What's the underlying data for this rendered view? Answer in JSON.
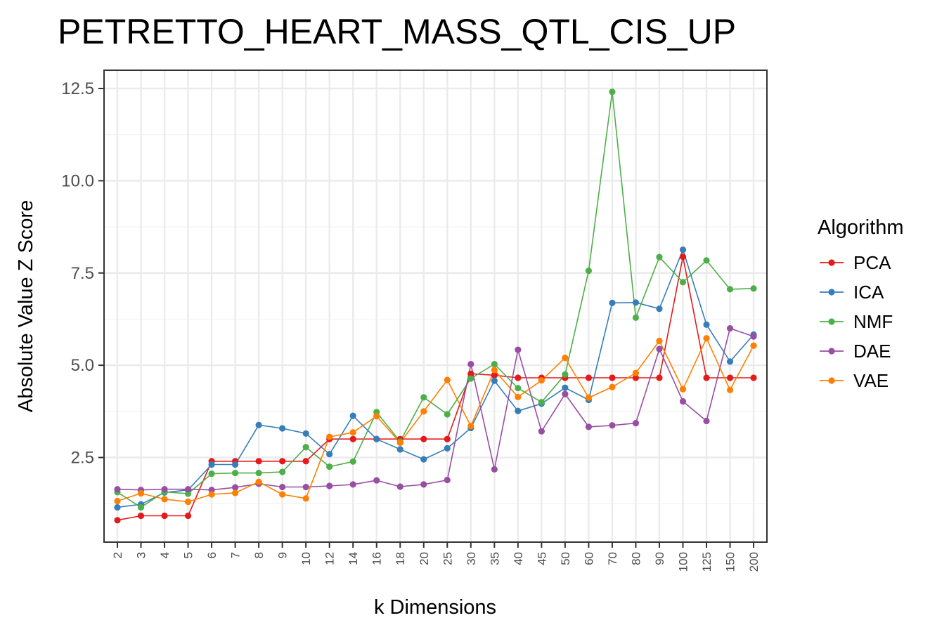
{
  "chart_data": {
    "type": "line",
    "title": "PETRETTO_HEART_MASS_QTL_CIS_UP",
    "xlabel": "k Dimensions",
    "ylabel": "Absolute Value Z Score",
    "x_scale": "categorical",
    "categories": [
      "2",
      "3",
      "4",
      "5",
      "6",
      "7",
      "8",
      "9",
      "10",
      "12",
      "14",
      "16",
      "18",
      "20",
      "25",
      "30",
      "35",
      "40",
      "45",
      "50",
      "60",
      "70",
      "80",
      "90",
      "100",
      "125",
      "150",
      "200"
    ],
    "ylim": [
      0.5,
      13.0
    ],
    "yticks": [
      2.5,
      5.0,
      7.5,
      10.0,
      12.5
    ],
    "ytick_labels": [
      "2.5",
      "5.0",
      "7.5",
      "10.0",
      "12.5"
    ],
    "grid": true,
    "legend": {
      "title": "Algorithm",
      "position": "right"
    },
    "series": [
      {
        "name": "PCA",
        "color": "#e41a1c",
        "values": [
          0.8,
          0.92,
          0.92,
          0.92,
          2.4,
          2.4,
          2.4,
          2.4,
          2.4,
          3.0,
          3.0,
          3.0,
          3.0,
          3.0,
          3.0,
          4.77,
          4.73,
          4.66,
          4.66,
          4.66,
          4.66,
          4.66,
          4.66,
          4.66,
          7.94,
          4.66,
          4.66,
          4.66
        ]
      },
      {
        "name": "ICA",
        "color": "#377eb8",
        "values": [
          1.15,
          1.23,
          1.55,
          1.62,
          2.31,
          2.31,
          3.38,
          3.29,
          3.15,
          2.59,
          3.63,
          3.0,
          2.72,
          2.45,
          2.75,
          3.3,
          4.58,
          3.76,
          3.96,
          4.39,
          4.06,
          6.69,
          6.7,
          6.53,
          8.13,
          6.1,
          5.1,
          5.83
        ]
      },
      {
        "name": "NMF",
        "color": "#4daf4a",
        "values": [
          1.56,
          1.15,
          1.57,
          1.52,
          2.06,
          2.08,
          2.08,
          2.11,
          2.78,
          2.25,
          2.39,
          3.73,
          2.93,
          4.13,
          3.67,
          4.64,
          5.03,
          4.38,
          4.0,
          4.75,
          7.56,
          12.41,
          6.29,
          7.93,
          7.25,
          7.84,
          7.06,
          7.08
        ]
      },
      {
        "name": "DAE",
        "color": "#984ea3",
        "values": [
          1.64,
          1.62,
          1.64,
          1.64,
          1.62,
          1.69,
          1.79,
          1.7,
          1.7,
          1.73,
          1.77,
          1.88,
          1.71,
          1.77,
          1.89,
          5.03,
          2.18,
          5.42,
          3.21,
          4.22,
          3.33,
          3.37,
          3.43,
          5.44,
          4.02,
          3.49,
          6.0,
          5.78
        ]
      },
      {
        "name": "VAE",
        "color": "#ff7f00",
        "values": [
          1.32,
          1.53,
          1.37,
          1.3,
          1.5,
          1.54,
          1.84,
          1.5,
          1.39,
          3.06,
          3.18,
          3.62,
          2.9,
          3.75,
          4.6,
          3.35,
          4.87,
          4.14,
          4.59,
          5.2,
          4.12,
          4.41,
          4.79,
          5.66,
          4.35,
          5.73,
          4.33,
          5.53
        ]
      }
    ]
  }
}
